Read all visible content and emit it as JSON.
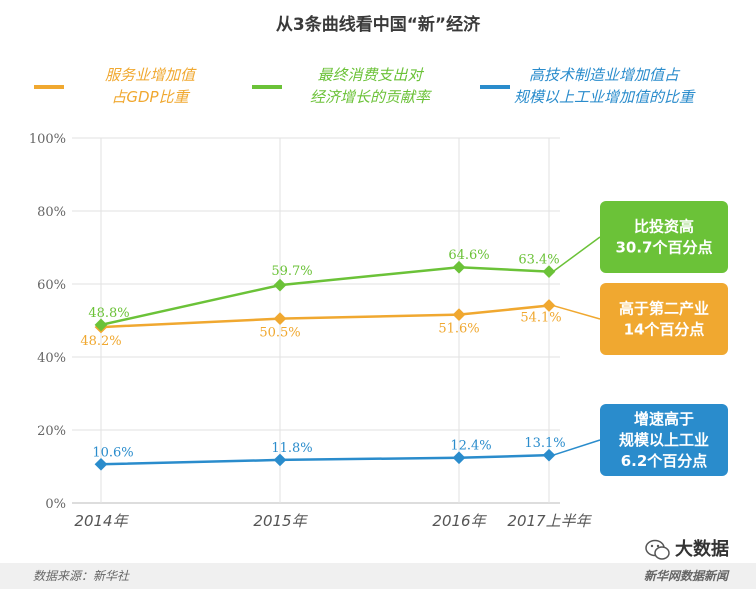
{
  "chart_data": {
    "type": "line",
    "title": "从3条曲线看中国“新”经济",
    "categories": [
      "2014年",
      "2015年",
      "2016年",
      "2017上半年"
    ],
    "ylim": [
      0,
      100
    ],
    "yticks": [
      "0%",
      "20%",
      "40%",
      "60%",
      "80%",
      "100%"
    ],
    "legend_position": "top",
    "series": [
      {
        "name_lines": [
          "服务业增加值",
          "占GDP比重"
        ],
        "color": "#f0a830",
        "values": [
          48.2,
          50.5,
          51.6,
          54.1
        ],
        "labels": [
          "48.2%",
          "50.5%",
          "51.6%",
          "54.1%"
        ]
      },
      {
        "name_lines": [
          "最终消费支出对",
          "经济增长的贡献率"
        ],
        "color": "#6bc238",
        "values": [
          48.8,
          59.7,
          64.6,
          63.4
        ],
        "labels": [
          "48.8%",
          "59.7%",
          "64.6%",
          "63.4%"
        ]
      },
      {
        "name_lines": [
          "高技术制造业增加值占",
          "规模以上工业增加值的比重"
        ],
        "color": "#2a8ccc",
        "values": [
          10.6,
          11.8,
          12.4,
          13.1
        ],
        "labels": [
          "10.6%",
          "11.8%",
          "12.4%",
          "13.1%"
        ]
      }
    ],
    "annotations": [
      {
        "lines": [
          "比投资高",
          "30.7个百分点"
        ],
        "color": "#6bc238",
        "series": 1
      },
      {
        "lines": [
          "高于第二产业",
          "14个百分点"
        ],
        "color": "#f0a830",
        "series": 0
      },
      {
        "lines": [
          "增速高于",
          "规模以上工业",
          "6.2个百分点"
        ],
        "color": "#2a8ccc",
        "series": 2
      }
    ]
  },
  "footer": {
    "source": "数据来源：新华社",
    "brand": "大数据",
    "publisher": "新华网数据新闻"
  }
}
